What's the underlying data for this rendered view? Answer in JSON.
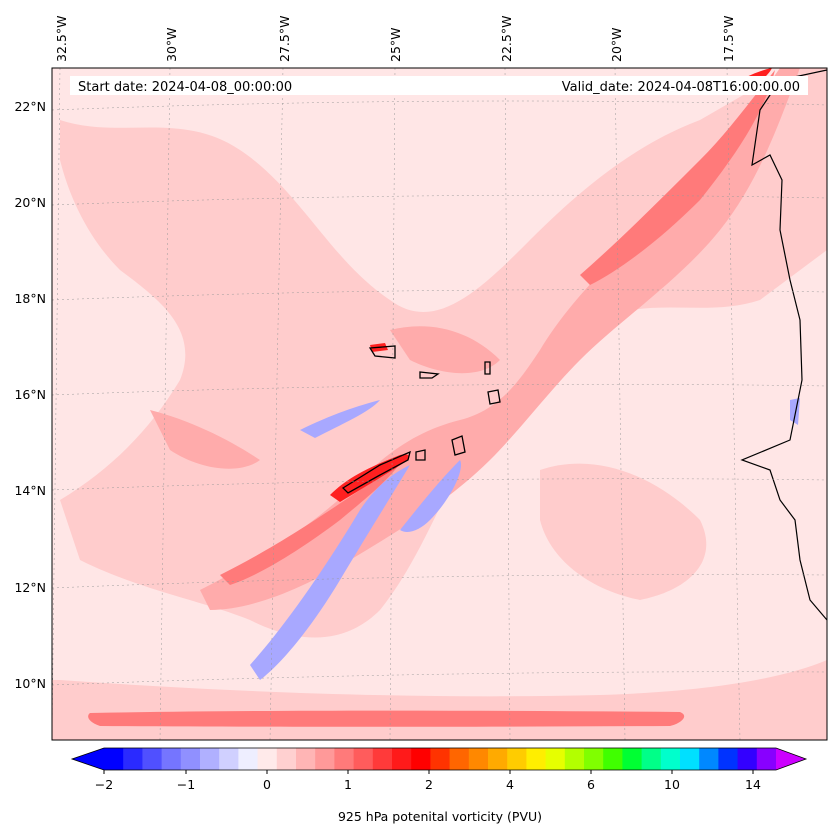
{
  "header": {
    "start_date": "Start date: 2024-04-08_00:00:00",
    "valid_date": "Valid_date: 2024-04-08T16:00:00.00"
  },
  "axes": {
    "lon_labels": [
      "32.5°W",
      "30°W",
      "27.5°W",
      "25°W",
      "22.5°W",
      "20°W",
      "17.5°W"
    ],
    "lat_labels": [
      "22°N",
      "20°N",
      "18°N",
      "16°N",
      "14°N",
      "12°N",
      "10°N"
    ]
  },
  "colorbar": {
    "label": "925 hPa potenital vorticity (PVU)",
    "ticks": [
      "−2",
      "−1",
      "0",
      "1",
      "2",
      "4",
      "6",
      "10",
      "14"
    ],
    "colors": [
      "#0000ff",
      "#2a2aff",
      "#5050ff",
      "#7575ff",
      "#9090ff",
      "#b0b0ff",
      "#d0d0ff",
      "#eeeeff",
      "#ffeaea",
      "#ffd0d0",
      "#ffb5b5",
      "#ff9999",
      "#ff7a7a",
      "#ff5c5c",
      "#ff3a3a",
      "#ff1a1a",
      "#ff0000",
      "#ff3300",
      "#ff6600",
      "#ff8800",
      "#ffaa00",
      "#ffcc00",
      "#ffee00",
      "#e6ff00",
      "#b3ff00",
      "#80ff00",
      "#40ff00",
      "#00ff33",
      "#00ff88",
      "#00ffcc",
      "#00e0ff",
      "#0088ff",
      "#0033ff",
      "#3300ff",
      "#8800ff"
    ],
    "under_color": "#0000ff",
    "over_color": "#cc00ff"
  },
  "field_colors": {
    "background": "#ffe6e6",
    "light": "#ffcccc",
    "medium": "#ffabab",
    "strong": "#ff7a7a",
    "max": "#ff2020",
    "negative_light": "#eeeeff",
    "negative": "#a8a8ff",
    "negative_strong": "#6a6aff"
  }
}
